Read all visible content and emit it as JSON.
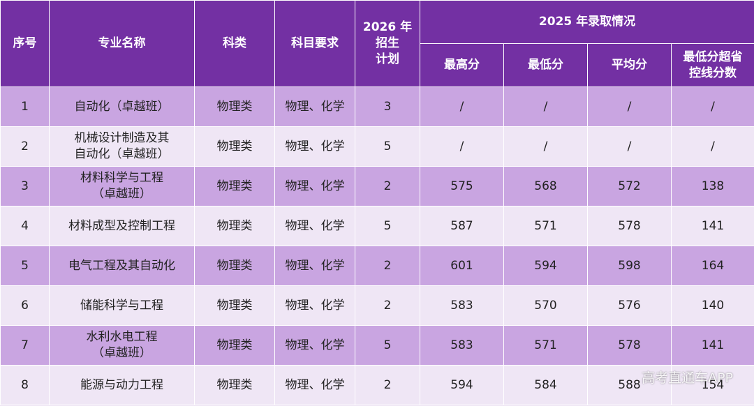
{
  "header": {
    "index": "序号",
    "major": "专业名称",
    "category": "科类",
    "subjects": "科目要求",
    "plan": "2026 年\n招生\n计划",
    "group": "2025 年录取情况",
    "max": "最高分",
    "min": "最低分",
    "avg": "平均分",
    "over": "最低分超省\n控线分数"
  },
  "table": {
    "rows": [
      [
        1,
        "自动化（卓越班）",
        "物理类",
        "物理、化学",
        3,
        "/",
        "/",
        "/",
        "/"
      ],
      [
        2,
        "机械设计制造及其\n自动化（卓越班）",
        "物理类",
        "物理、化学",
        5,
        "/",
        "/",
        "/",
        "/"
      ],
      [
        3,
        "材料科学与工程\n（卓越班）",
        "物理类",
        "物理、化学",
        2,
        575,
        568,
        572,
        138
      ],
      [
        4,
        "材料成型及控制工程",
        "物理类",
        "物理、化学",
        5,
        587,
        571,
        578,
        141
      ],
      [
        5,
        "电气工程及其自动化",
        "物理类",
        "物理、化学",
        2,
        601,
        594,
        598,
        164
      ],
      [
        6,
        "储能科学与工程",
        "物理类",
        "物理、化学",
        2,
        583,
        570,
        576,
        140
      ],
      [
        7,
        "水利水电工程\n（卓越班）",
        "物理类",
        "物理、化学",
        5,
        583,
        571,
        578,
        141
      ],
      [
        8,
        "能源与动力工程",
        "物理类",
        "物理、化学",
        2,
        594,
        584,
        588,
        154
      ]
    ]
  },
  "watermark": "高考直通车APP"
}
